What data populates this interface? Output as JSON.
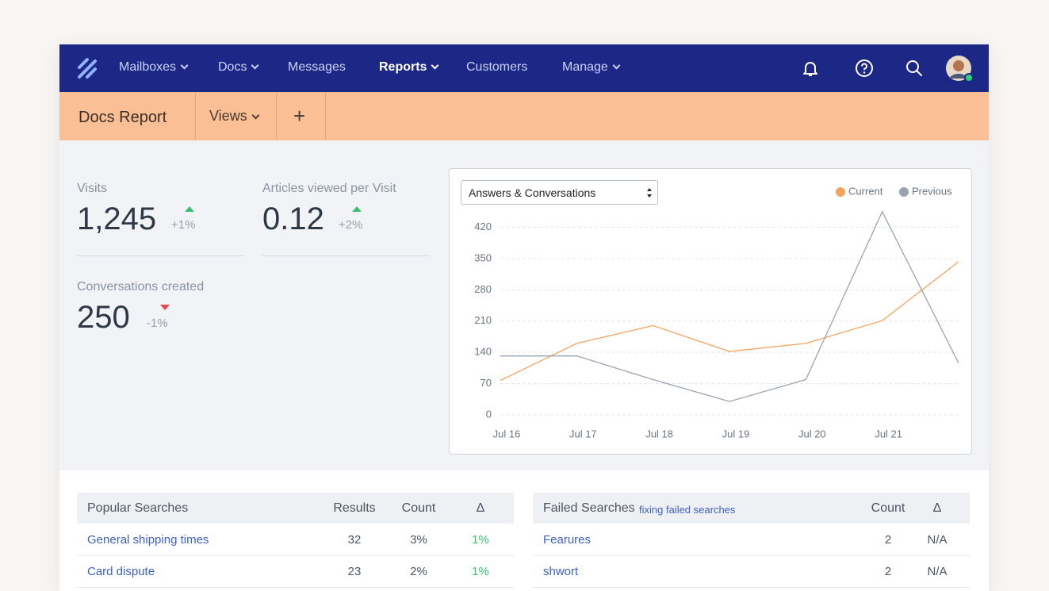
{
  "nav": {
    "items": [
      "Mailboxes",
      "Docs",
      "Messages",
      "Reports",
      "Customers",
      "Manage"
    ]
  },
  "subnav": {
    "title": "Docs Report",
    "views": "Views",
    "add": "+"
  },
  "stats": [
    {
      "label": "Visits",
      "value": "1,245",
      "change": "+1%"
    },
    {
      "label": "Articles viewed per Visit",
      "value": "0.12",
      "change": "+2%"
    },
    {
      "label": "Conversations created",
      "value": "250",
      "change": "-1%"
    }
  ],
  "chart_data": {
    "type": "line",
    "selector": "Answers & Conversations",
    "categories": [
      "Jul 16",
      "Jul 17",
      "Jul 18",
      "Jul 19",
      "Jul 20",
      "Jul 21",
      null
    ],
    "series": [
      {
        "name": "Current",
        "color": "#f5a25d",
        "values": [
          77,
          160,
          200,
          142,
          160,
          211,
          343
        ]
      },
      {
        "name": "Previous",
        "color": "#9aa3b0",
        "values": [
          132,
          132,
          79,
          30,
          79,
          455,
          116
        ]
      }
    ],
    "ylim": [
      0,
      460
    ],
    "yticks": [
      0,
      70,
      140,
      210,
      280,
      350,
      420
    ],
    "grid": true,
    "legend": "top-right"
  },
  "popular": {
    "columns": [
      "Popular Searches",
      "Results",
      "Count",
      "Δ"
    ],
    "rows": [
      [
        "General shipping times",
        "32",
        "3%",
        "1%"
      ],
      [
        "Card dispute",
        "23",
        "2%",
        "1%"
      ]
    ]
  },
  "failed": {
    "columns": [
      "Failed Searches",
      "Count",
      "Δ"
    ],
    "link": "fixing failed searches",
    "rows": [
      [
        "Fearures",
        "2",
        "N/A"
      ],
      [
        "shwort",
        "2",
        "N/A"
      ]
    ]
  }
}
